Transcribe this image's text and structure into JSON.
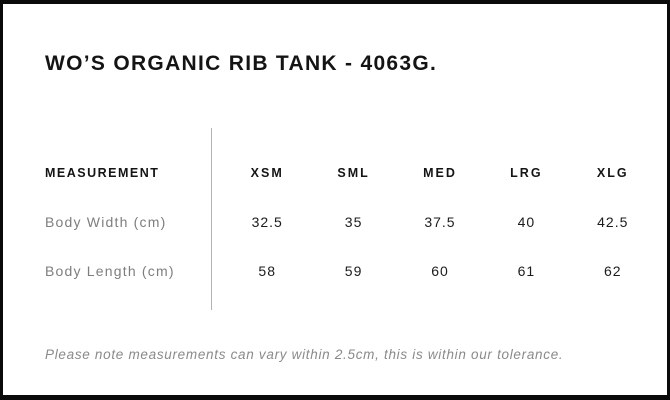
{
  "page": {
    "title": "WO’S ORGANIC RIB TANK - 4063G.",
    "footnote": "Please note measurements can vary within 2.5cm, this is within our tolerance."
  },
  "size_chart": {
    "measurement_header": "MEASUREMENT",
    "size_headers": [
      "XSM",
      "SML",
      "MED",
      "LRG",
      "XLG"
    ],
    "rows": [
      {
        "label": "Body Width (cm)",
        "values": [
          "32.5",
          "35",
          "37.5",
          "40",
          "42.5"
        ]
      },
      {
        "label": "Body Length (cm)",
        "values": [
          "58",
          "59",
          "60",
          "61",
          "62"
        ]
      }
    ]
  },
  "colors": {
    "border": "#0a0a0a",
    "heading-text": "#141414",
    "label-text": "#7e7e7e",
    "value-text": "#1c1c1c",
    "divider": "#b3b3b3",
    "footnote-text": "#8a8a8a"
  }
}
